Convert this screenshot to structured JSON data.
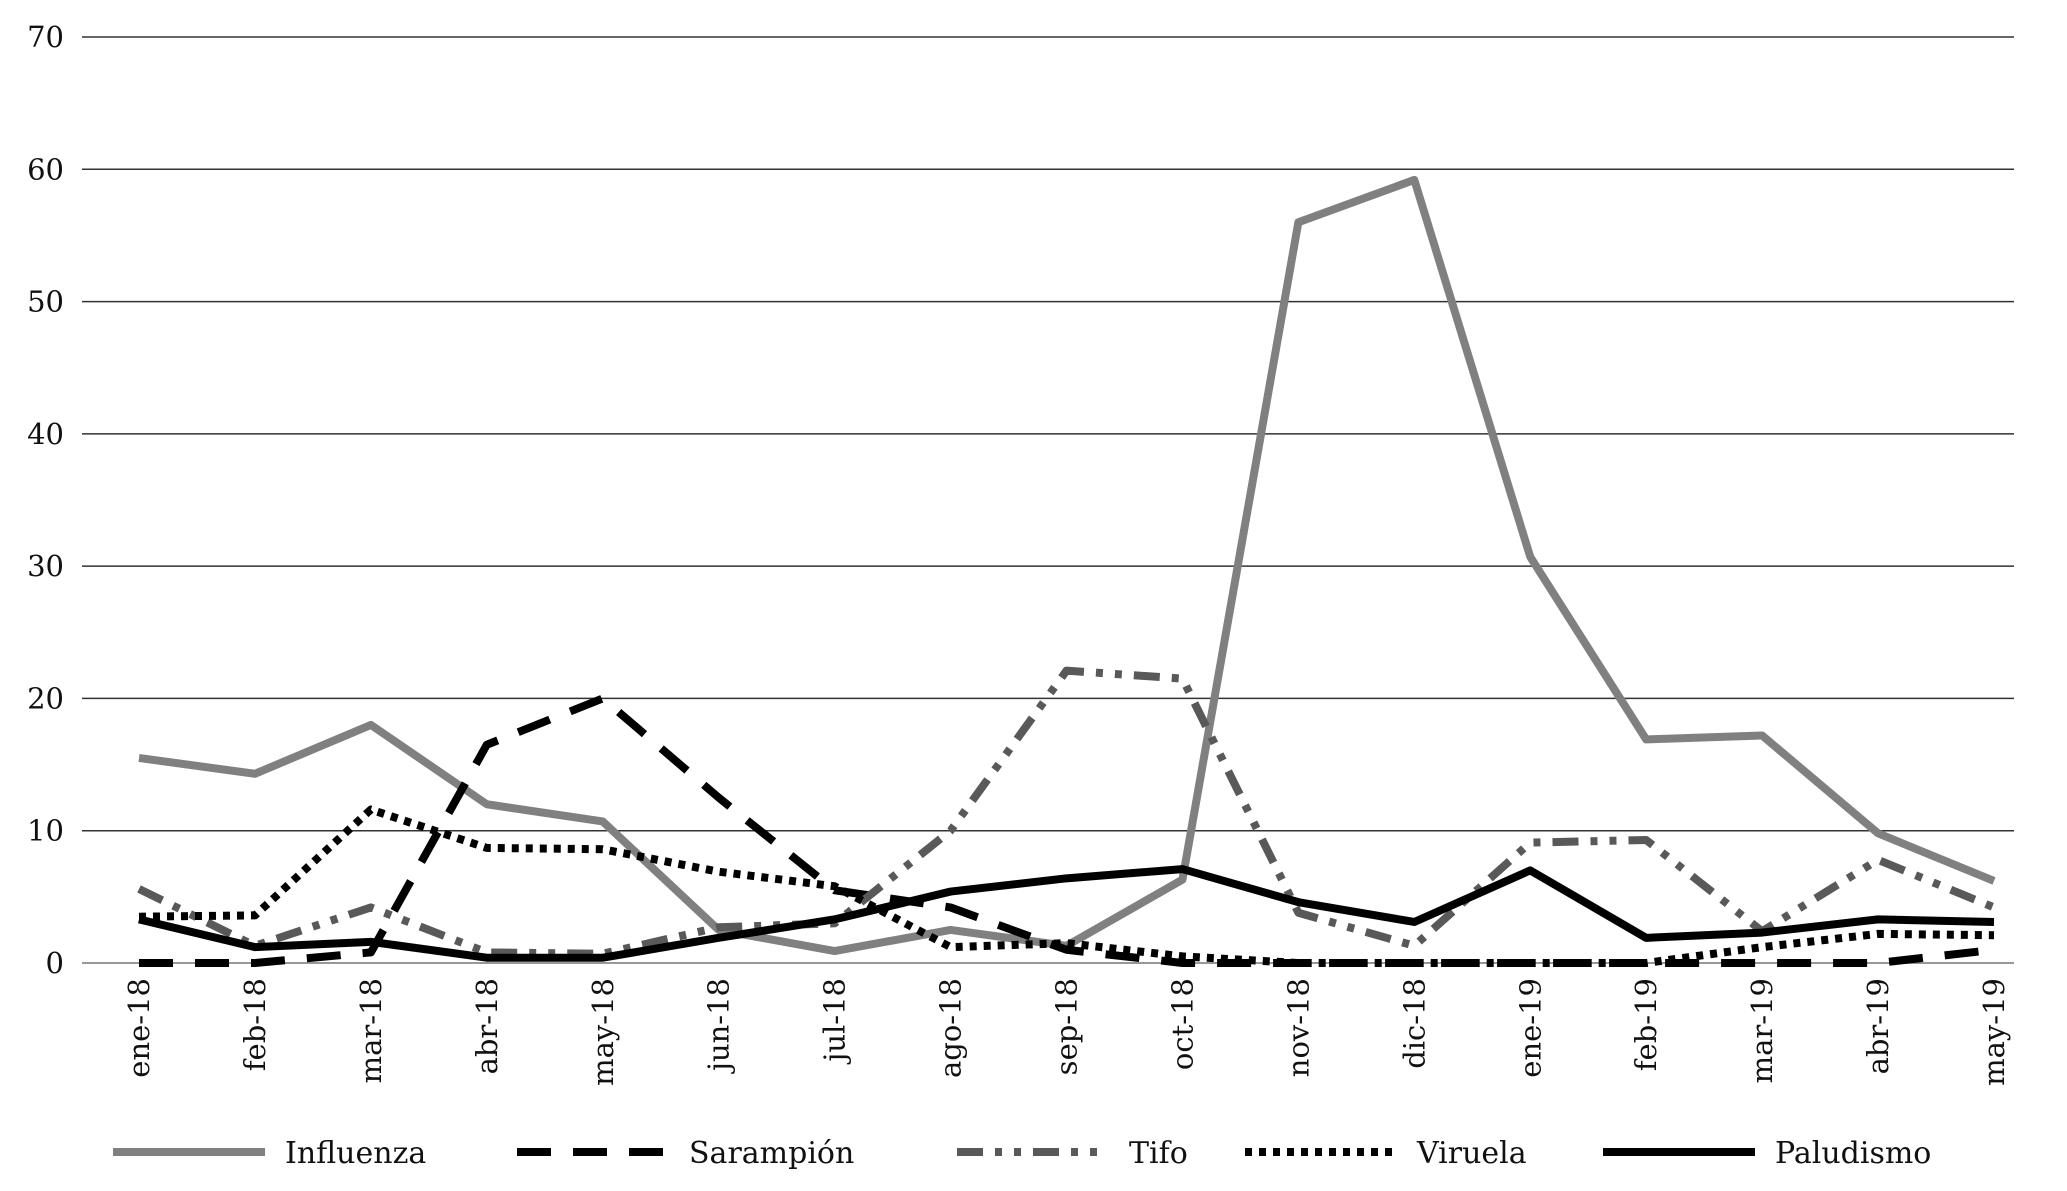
{
  "chart_data": {
    "type": "line",
    "title": "",
    "xlabel": "",
    "ylabel": "",
    "ylim": [
      0,
      70
    ],
    "yticks": [
      0,
      10,
      20,
      30,
      40,
      50,
      60,
      70
    ],
    "grid": true,
    "legend_placement": "bottom",
    "categories": [
      "ene-18",
      "feb-18",
      "mar-18",
      "abr-18",
      "may-18",
      "jun-18",
      "jul-18",
      "ago-18",
      "sep-18",
      "oct-18",
      "nov-18",
      "dic-18",
      "ene-19",
      "feb-19",
      "mar-19",
      "abr-19",
      "may-19"
    ],
    "series": [
      {
        "name": "Influenza",
        "color": "#808080",
        "style": "solid",
        "values": [
          15.5,
          14.3,
          18,
          12,
          10.7,
          2.5,
          0.9,
          2.5,
          1.3,
          6.3,
          56,
          59.2,
          30.7,
          16.9,
          17.2,
          9.8,
          6.2
        ]
      },
      {
        "name": "Sarampión",
        "color": "#000000",
        "style": "dash",
        "values": [
          0,
          0,
          0.8,
          16.5,
          20,
          12.5,
          5.5,
          4.2,
          1,
          0,
          0,
          0,
          0,
          0,
          0,
          0,
          1
        ]
      },
      {
        "name": "Tifo",
        "color": "#595959",
        "style": "dashdotdot",
        "values": [
          5.6,
          1.3,
          4.2,
          0.8,
          0.7,
          2.7,
          3,
          10,
          22.1,
          21.5,
          3.8,
          1.3,
          9.1,
          9.3,
          2.4,
          7.8,
          4.2
        ]
      },
      {
        "name": "Viruela",
        "color": "#000000",
        "style": "dot",
        "values": [
          3.5,
          3.6,
          11.6,
          8.7,
          8.6,
          6.9,
          5.8,
          1.2,
          1.5,
          0.5,
          0,
          0,
          0,
          0,
          1.2,
          2.2,
          2.1
        ]
      },
      {
        "name": "Paludismo",
        "color": "#000000",
        "style": "solid",
        "values": [
          3.3,
          1.2,
          1.6,
          0.4,
          0.4,
          1.9,
          3.3,
          5.4,
          6.4,
          7.1,
          4.6,
          3.1,
          7,
          1.9,
          2.3,
          3.3,
          3.1
        ]
      }
    ]
  }
}
